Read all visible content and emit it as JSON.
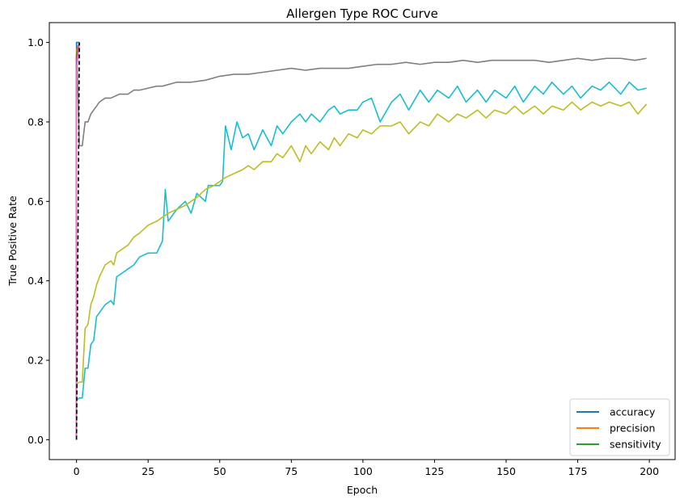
{
  "chart_data": {
    "type": "line",
    "title": "Allergen Type ROC Curve",
    "xlabel": "Epoch",
    "ylabel": "True Positive Rate",
    "xlim": [
      -9.5,
      209
    ],
    "ylim": [
      -0.05,
      1.05
    ],
    "xticks": [
      0,
      25,
      50,
      75,
      100,
      125,
      150,
      175,
      200
    ],
    "yticks": [
      0.0,
      0.2,
      0.4,
      0.6,
      0.8,
      1.0
    ],
    "grid": false,
    "legend": {
      "placement": "lower right",
      "entries": [
        {
          "label": "accuracy",
          "color": "#1f77b4"
        },
        {
          "label": "precision",
          "color": "#ff7f0e"
        },
        {
          "label": "sensitivity",
          "color": "#2ca02c"
        }
      ]
    },
    "series": [
      {
        "color": "#7f7f7f",
        "x": [
          0,
          1,
          2,
          3,
          4,
          5,
          6,
          7,
          8,
          10,
          12,
          15,
          18,
          20,
          22,
          25,
          28,
          30,
          35,
          40,
          45,
          50,
          55,
          60,
          65,
          70,
          75,
          80,
          85,
          90,
          95,
          100,
          105,
          110,
          115,
          120,
          125,
          130,
          135,
          140,
          145,
          150,
          155,
          160,
          165,
          170,
          175,
          180,
          185,
          190,
          195,
          199
        ],
        "y": [
          1.0,
          0.74,
          0.74,
          0.8,
          0.8,
          0.82,
          0.83,
          0.84,
          0.85,
          0.86,
          0.86,
          0.87,
          0.87,
          0.88,
          0.88,
          0.885,
          0.89,
          0.89,
          0.9,
          0.9,
          0.905,
          0.915,
          0.92,
          0.92,
          0.925,
          0.93,
          0.935,
          0.93,
          0.935,
          0.935,
          0.935,
          0.94,
          0.945,
          0.945,
          0.95,
          0.945,
          0.95,
          0.95,
          0.955,
          0.95,
          0.955,
          0.955,
          0.955,
          0.955,
          0.95,
          0.955,
          0.96,
          0.955,
          0.96,
          0.96,
          0.955,
          0.96
        ]
      },
      {
        "color": "#17becf",
        "x": [
          0,
          1,
          2,
          3,
          4,
          5,
          6,
          7,
          8,
          10,
          12,
          13,
          14,
          16,
          18,
          20,
          22,
          25,
          28,
          30,
          31,
          32,
          35,
          38,
          40,
          42,
          45,
          46,
          48,
          50,
          51,
          52,
          54,
          56,
          58,
          60,
          62,
          65,
          68,
          70,
          72,
          75,
          78,
          80,
          82,
          85,
          88,
          90,
          92,
          95,
          98,
          100,
          103,
          106,
          110,
          113,
          116,
          120,
          123,
          126,
          130,
          133,
          136,
          140,
          143,
          146,
          150,
          153,
          156,
          160,
          163,
          166,
          170,
          173,
          176,
          180,
          183,
          186,
          190,
          193,
          196,
          199
        ],
        "y": [
          0.1,
          0.105,
          0.105,
          0.18,
          0.18,
          0.24,
          0.25,
          0.31,
          0.32,
          0.34,
          0.35,
          0.34,
          0.41,
          0.42,
          0.43,
          0.44,
          0.46,
          0.47,
          0.47,
          0.5,
          0.63,
          0.55,
          0.58,
          0.6,
          0.57,
          0.62,
          0.6,
          0.64,
          0.64,
          0.64,
          0.65,
          0.79,
          0.73,
          0.8,
          0.76,
          0.77,
          0.73,
          0.78,
          0.74,
          0.79,
          0.77,
          0.8,
          0.82,
          0.8,
          0.82,
          0.8,
          0.83,
          0.84,
          0.82,
          0.83,
          0.83,
          0.85,
          0.86,
          0.8,
          0.85,
          0.87,
          0.83,
          0.88,
          0.85,
          0.88,
          0.86,
          0.89,
          0.85,
          0.88,
          0.85,
          0.88,
          0.86,
          0.89,
          0.85,
          0.89,
          0.87,
          0.9,
          0.87,
          0.89,
          0.86,
          0.89,
          0.88,
          0.9,
          0.87,
          0.9,
          0.88,
          0.885
        ]
      },
      {
        "color": "#bcbd22",
        "x": [
          0,
          1,
          2,
          3,
          4,
          5,
          6,
          7,
          8,
          10,
          12,
          13,
          14,
          16,
          18,
          20,
          22,
          25,
          28,
          30,
          32,
          35,
          38,
          40,
          42,
          45,
          48,
          50,
          52,
          55,
          58,
          60,
          62,
          65,
          68,
          70,
          72,
          75,
          78,
          80,
          82,
          85,
          88,
          90,
          92,
          95,
          98,
          100,
          103,
          106,
          110,
          113,
          116,
          120,
          123,
          126,
          130,
          133,
          136,
          140,
          143,
          146,
          150,
          153,
          156,
          160,
          163,
          166,
          170,
          173,
          176,
          180,
          183,
          186,
          190,
          193,
          196,
          199
        ],
        "y": [
          0.14,
          0.145,
          0.145,
          0.28,
          0.29,
          0.34,
          0.36,
          0.39,
          0.41,
          0.44,
          0.45,
          0.44,
          0.47,
          0.48,
          0.49,
          0.51,
          0.52,
          0.54,
          0.55,
          0.56,
          0.57,
          0.58,
          0.59,
          0.6,
          0.61,
          0.63,
          0.64,
          0.65,
          0.66,
          0.67,
          0.68,
          0.69,
          0.68,
          0.7,
          0.7,
          0.72,
          0.71,
          0.74,
          0.7,
          0.74,
          0.72,
          0.75,
          0.73,
          0.76,
          0.74,
          0.77,
          0.76,
          0.78,
          0.77,
          0.79,
          0.79,
          0.8,
          0.77,
          0.8,
          0.79,
          0.82,
          0.8,
          0.82,
          0.81,
          0.83,
          0.81,
          0.83,
          0.82,
          0.84,
          0.82,
          0.84,
          0.82,
          0.84,
          0.83,
          0.85,
          0.83,
          0.85,
          0.84,
          0.85,
          0.84,
          0.85,
          0.82,
          0.845
        ]
      },
      {
        "color": "#1f77b4",
        "x": [
          0,
          0,
          1
        ],
        "y": [
          0.0,
          1.0,
          1.0
        ]
      },
      {
        "color": "#ff7f0e",
        "x": [
          0,
          0,
          1
        ],
        "y": [
          0.0,
          0.98,
          1.0
        ]
      },
      {
        "color": "#2ca02c",
        "x": [
          0,
          0,
          1
        ],
        "y": [
          0.0,
          0.97,
          1.0
        ]
      },
      {
        "color": "#d62728",
        "x": [
          0,
          0,
          1
        ],
        "y": [
          0.0,
          0.96,
          1.0
        ]
      },
      {
        "color": "#9467bd",
        "x": [
          0,
          0,
          1
        ],
        "y": [
          0.0,
          0.95,
          1.0
        ]
      },
      {
        "color": "#e377c2",
        "x": [
          0,
          0,
          1
        ],
        "y": [
          0.0,
          0.93,
          1.0
        ]
      },
      {
        "color": "#000000",
        "dashed": true,
        "x": [
          0,
          1
        ],
        "y": [
          0.0,
          1.0
        ]
      }
    ]
  }
}
